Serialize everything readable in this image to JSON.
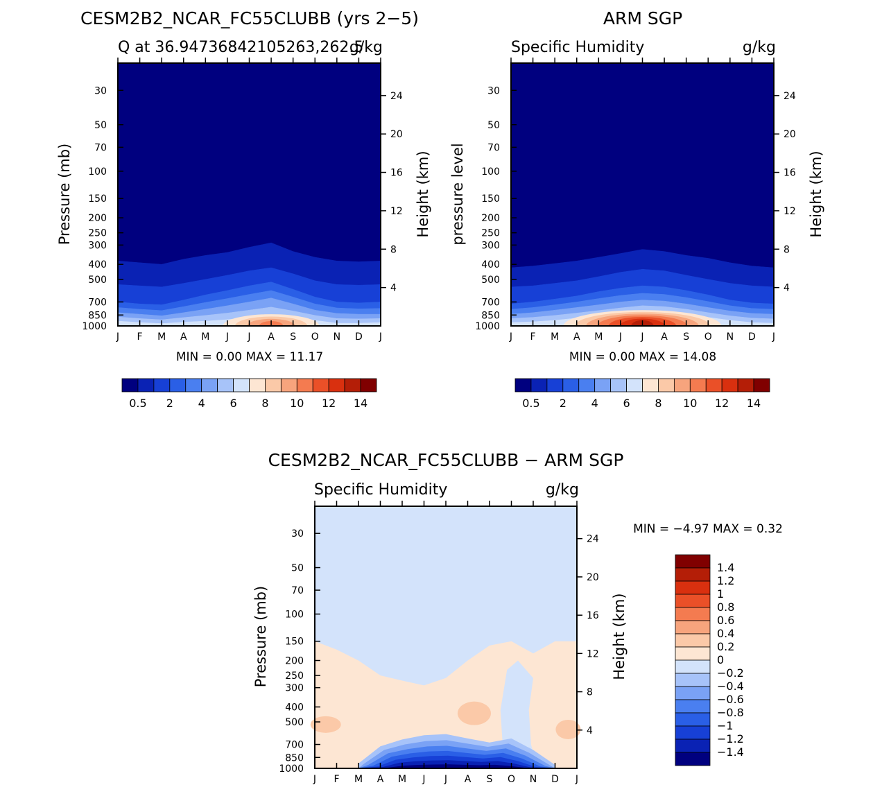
{
  "chart_data": [
    {
      "id": "model",
      "type": "contour",
      "title": "CESM2B2_NCAR_FC55CLUBB (yrs 2−5)",
      "subtitle_left": "Q at 36.94736842105263,262.5",
      "subtitle_right": "g/kg",
      "ylabel": "Pressure (mb)",
      "ylabel_right": "Height (km)",
      "xticks": [
        "J",
        "F",
        "M",
        "A",
        "M",
        "J",
        "J",
        "A",
        "S",
        "O",
        "N",
        "D",
        "J"
      ],
      "yticks": [
        "30",
        "50",
        "70",
        "100",
        "150",
        "200",
        "250",
        "300",
        "400",
        "500",
        "700",
        "850",
        "1000"
      ],
      "height_ticks": [
        "24",
        "20",
        "16",
        "12",
        "8",
        "4"
      ],
      "stats_text": "MIN =    0.00  MAX =   11.17",
      "min": 0.0,
      "max": 11.17,
      "colorbar": {
        "labels": [
          "0.5",
          "2",
          "4",
          "6",
          "8",
          "10",
          "12",
          "14"
        ],
        "colors": [
          "#00007f",
          "#0a22b4",
          "#1740d6",
          "#2a5fe6",
          "#4a7ff0",
          "#7aa2f5",
          "#a7c3f9",
          "#d3e3fb",
          "#fde6d3",
          "#fbc9a8",
          "#f7a47d",
          "#f47b50",
          "#ea5028",
          "#d9300f",
          "#b41e07",
          "#800000"
        ]
      },
      "band_levels_hpa": [
        [
          1000,
          1000,
          1000,
          1000,
          1000,
          1000,
          1000,
          1000,
          1000,
          1000,
          1000,
          1000,
          1000
        ],
        [
          930,
          950,
          965,
          945,
          930,
          910,
          880,
          850,
          880,
          920,
          960,
          960,
          950
        ],
        [
          820,
          840,
          860,
          820,
          780,
          740,
          700,
          660,
          720,
          790,
          830,
          840,
          840
        ],
        [
          700,
          720,
          730,
          680,
          630,
          590,
          550,
          520,
          580,
          650,
          700,
          710,
          700
        ],
        [
          540,
          550,
          560,
          530,
          500,
          470,
          440,
          420,
          460,
          510,
          540,
          545,
          540
        ],
        [
          380,
          390,
          400,
          370,
          350,
          335,
          310,
          290,
          330,
          360,
          380,
          385,
          380
        ],
        [
          0,
          0,
          0,
          0,
          0,
          0,
          0,
          0,
          0,
          0,
          0,
          0,
          0
        ]
      ],
      "warm_core": {
        "center_month": 7.0,
        "center_hpa": 960,
        "extent_months": 2.2,
        "extent_hpa": 120,
        "peak": 11.17
      }
    },
    {
      "id": "obs",
      "type": "contour",
      "title": "ARM SGP",
      "subtitle_left": "Specific Humidity",
      "subtitle_right": "g/kg",
      "ylabel": "pressure level",
      "ylabel_right": "Height (km)",
      "xticks": [
        "J",
        "F",
        "M",
        "A",
        "M",
        "J",
        "J",
        "A",
        "S",
        "O",
        "N",
        "D",
        "J"
      ],
      "yticks": [
        "30",
        "50",
        "70",
        "100",
        "150",
        "200",
        "250",
        "300",
        "400",
        "500",
        "700",
        "850",
        "1000"
      ],
      "height_ticks": [
        "24",
        "20",
        "16",
        "12",
        "8",
        "4"
      ],
      "stats_text": "MIN =    0.00  MAX =   14.08",
      "min": 0.0,
      "max": 14.08,
      "colorbar": {
        "labels": [
          "0.5",
          "2",
          "4",
          "6",
          "8",
          "10",
          "12",
          "14"
        ],
        "colors": [
          "#00007f",
          "#0a22b4",
          "#1740d6",
          "#2a5fe6",
          "#4a7ff0",
          "#7aa2f5",
          "#a7c3f9",
          "#d3e3fb",
          "#fde6d3",
          "#fbc9a8",
          "#f7a47d",
          "#f47b50",
          "#ea5028",
          "#d9300f",
          "#b41e07",
          "#800000"
        ]
      },
      "band_levels_hpa": [
        [
          1000,
          1000,
          1000,
          1000,
          1000,
          1000,
          1000,
          1000,
          1000,
          1000,
          1000,
          1000,
          1000
        ],
        [
          950,
          940,
          920,
          890,
          860,
          830,
          800,
          810,
          840,
          880,
          920,
          950,
          960
        ],
        [
          840,
          820,
          790,
          760,
          730,
          700,
          680,
          690,
          720,
          760,
          800,
          830,
          840
        ],
        [
          720,
          700,
          670,
          640,
          600,
          570,
          550,
          560,
          590,
          630,
          680,
          710,
          720
        ],
        [
          560,
          550,
          530,
          510,
          480,
          450,
          430,
          440,
          470,
          500,
          530,
          550,
          560
        ],
        [
          420,
          410,
          395,
          380,
          360,
          340,
          320,
          330,
          350,
          365,
          390,
          410,
          420
        ],
        [
          0,
          0,
          0,
          0,
          0,
          0,
          0,
          0,
          0,
          0,
          0,
          0,
          0
        ]
      ],
      "warm_core": {
        "center_month": 6.0,
        "center_hpa": 940,
        "extent_months": 3.6,
        "extent_hpa": 150,
        "peak": 14.08
      }
    },
    {
      "id": "diff",
      "type": "contour",
      "title": "CESM2B2_NCAR_FC55CLUBB − ARM SGP",
      "subtitle_left": "Specific Humidity",
      "subtitle_right": "g/kg",
      "ylabel": "Pressure (mb)",
      "ylabel_right": "Height (km)",
      "xticks": [
        "J",
        "F",
        "M",
        "A",
        "M",
        "J",
        "J",
        "A",
        "S",
        "O",
        "N",
        "D",
        "J"
      ],
      "yticks": [
        "30",
        "50",
        "70",
        "100",
        "150",
        "200",
        "250",
        "300",
        "400",
        "500",
        "700",
        "850",
        "1000"
      ],
      "height_ticks": [
        "24",
        "20",
        "16",
        "12",
        "8",
        "4"
      ],
      "stats_text": "MIN =   −4.97  MAX =    0.32",
      "min": -4.97,
      "max": 0.32,
      "colorbar": {
        "labels_top_to_bottom": [
          "1.4",
          "1.2",
          "1",
          "0.8",
          "0.6",
          "0.4",
          "0.2",
          "0",
          "−0.2",
          "−0.4",
          "−0.6",
          "−0.8",
          "−1",
          "−1.2",
          "−1.4"
        ],
        "colors_top_to_bottom": [
          "#800000",
          "#b41e07",
          "#d9300f",
          "#ea5028",
          "#f47b50",
          "#f7a47d",
          "#fbc9a8",
          "#fde6d3",
          "#d3e3fb",
          "#a7c3f9",
          "#7aa2f5",
          "#4a7ff0",
          "#2a5fe6",
          "#1740d6",
          "#0a22b4",
          "#00007f"
        ]
      },
      "background_value": "0 to −0.2",
      "positive_region_top_hpa": [
        150,
        170,
        200,
        250,
        270,
        290,
        260,
        200,
        160,
        150,
        180,
        150,
        150
      ],
      "dry_anomaly": {
        "months": [
          2.0,
          3.0,
          4.0,
          5.0,
          6.0,
          7.0,
          8.0,
          9.0,
          10.0,
          11.0
        ],
        "top_hpa": [
          930,
          720,
          650,
          610,
          600,
          640,
          680,
          640,
          760,
          950
        ]
      }
    }
  ]
}
